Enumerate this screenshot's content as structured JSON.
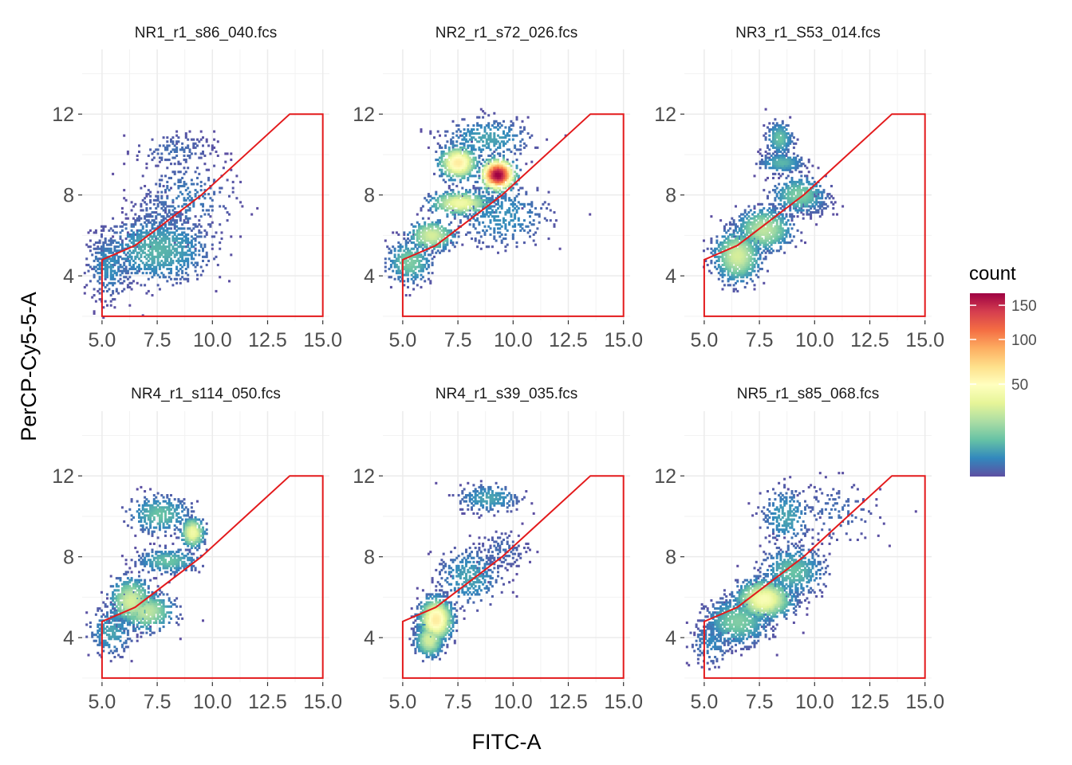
{
  "chart_data": {
    "type": "heatmap",
    "layout": "facet grid 2 rows x 3 columns",
    "xlabel": "FITC-A",
    "ylabel": "PerCP-Cy5-5-A",
    "xlim": [
      4.1,
      15.3
    ],
    "ylim": [
      1.8,
      15.2
    ],
    "x_ticks": [
      5.0,
      7.5,
      10.0,
      12.5,
      15.0
    ],
    "x_tick_labels": [
      "5.0",
      "7.5",
      "10.0",
      "12.5",
      "15.0"
    ],
    "y_ticks": [
      4,
      8,
      12
    ],
    "y_tick_labels": [
      "4",
      "8",
      "12"
    ],
    "grid": true,
    "gate": {
      "color": "#e31a1c",
      "polygon": [
        [
          5.0,
          2.0
        ],
        [
          5.0,
          4.8
        ],
        [
          6.5,
          5.5
        ],
        [
          9.5,
          8.0
        ],
        [
          13.5,
          12.0
        ],
        [
          15.0,
          12.0
        ],
        [
          15.0,
          2.0
        ]
      ]
    },
    "legend": {
      "title": "count",
      "position": "right",
      "scale": "sqrt",
      "range": [
        1,
        170
      ],
      "breaks": [
        50,
        100,
        150
      ],
      "break_labels": [
        "50",
        "100",
        "150"
      ],
      "palette": [
        "#5e4fa2",
        "#3288bd",
        "#66c2a5",
        "#abdda4",
        "#e6f598",
        "#ffffbf",
        "#fee08b",
        "#fdae61",
        "#f46d43",
        "#d53e4f",
        "#9e0142"
      ]
    },
    "panels": [
      {
        "title": "NR1_r1_s86_040.fcs",
        "clusters": [
          {
            "x": 7.5,
            "y": 5.3,
            "sx": 1.2,
            "sy": 0.8,
            "n": 900,
            "peak": 10
          },
          {
            "x": 5.3,
            "y": 4.5,
            "sx": 0.5,
            "sy": 0.8,
            "n": 300,
            "peak": 6
          },
          {
            "x": 8.8,
            "y": 7.8,
            "sx": 1.1,
            "sy": 1.0,
            "n": 250,
            "peak": 4
          },
          {
            "x": 8.3,
            "y": 10.2,
            "sx": 0.9,
            "sy": 0.45,
            "n": 140,
            "peak": 3
          },
          {
            "x": 7.5,
            "y": 7.0,
            "sx": 0.6,
            "sy": 0.7,
            "n": 120,
            "peak": 3
          }
        ]
      },
      {
        "title": "NR2_r1_s72_026.fcs",
        "clusters": [
          {
            "x": 7.5,
            "y": 9.6,
            "sx": 0.4,
            "sy": 0.38,
            "n": 700,
            "peak": 60
          },
          {
            "x": 9.3,
            "y": 9.0,
            "sx": 0.35,
            "sy": 0.35,
            "n": 800,
            "peak": 170
          },
          {
            "x": 7.6,
            "y": 7.6,
            "sx": 0.65,
            "sy": 0.28,
            "n": 500,
            "peak": 40
          },
          {
            "x": 6.3,
            "y": 6.0,
            "sx": 0.5,
            "sy": 0.35,
            "n": 400,
            "peak": 30
          },
          {
            "x": 5.3,
            "y": 4.7,
            "sx": 0.5,
            "sy": 0.5,
            "n": 400,
            "peak": 15
          },
          {
            "x": 8.8,
            "y": 10.8,
            "sx": 1.0,
            "sy": 0.5,
            "n": 300,
            "peak": 8
          },
          {
            "x": 9.5,
            "y": 7.0,
            "sx": 1.1,
            "sy": 0.8,
            "n": 350,
            "peak": 6
          }
        ]
      },
      {
        "title": "NR3_r1_S53_014.fcs",
        "clusters": [
          {
            "x": 6.5,
            "y": 5.0,
            "sx": 0.5,
            "sy": 0.6,
            "n": 900,
            "peak": 30
          },
          {
            "x": 7.7,
            "y": 6.3,
            "sx": 0.6,
            "sy": 0.5,
            "n": 700,
            "peak": 25
          },
          {
            "x": 9.3,
            "y": 8.0,
            "sx": 0.6,
            "sy": 0.45,
            "n": 400,
            "peak": 15
          },
          {
            "x": 8.4,
            "y": 10.8,
            "sx": 0.3,
            "sy": 0.4,
            "n": 220,
            "peak": 12
          },
          {
            "x": 8.5,
            "y": 9.6,
            "sx": 0.5,
            "sy": 0.25,
            "n": 250,
            "peak": 10
          },
          {
            "x": 10.0,
            "y": 7.5,
            "sx": 0.5,
            "sy": 0.3,
            "n": 100,
            "peak": 3
          }
        ]
      },
      {
        "title": "NR4_r1_s114_050.fcs",
        "clusters": [
          {
            "x": 6.3,
            "y": 5.8,
            "sx": 0.45,
            "sy": 0.55,
            "n": 600,
            "peak": 30
          },
          {
            "x": 7.0,
            "y": 5.3,
            "sx": 0.6,
            "sy": 0.45,
            "n": 500,
            "peak": 25
          },
          {
            "x": 9.1,
            "y": 9.2,
            "sx": 0.25,
            "sy": 0.35,
            "n": 350,
            "peak": 40
          },
          {
            "x": 7.6,
            "y": 10.1,
            "sx": 0.7,
            "sy": 0.45,
            "n": 350,
            "peak": 12
          },
          {
            "x": 8.0,
            "y": 7.8,
            "sx": 0.7,
            "sy": 0.3,
            "n": 300,
            "peak": 12
          },
          {
            "x": 5.4,
            "y": 4.3,
            "sx": 0.5,
            "sy": 0.6,
            "n": 250,
            "peak": 8
          }
        ]
      },
      {
        "title": "NR4_r1_s39_035.fcs",
        "clusters": [
          {
            "x": 6.5,
            "y": 4.9,
            "sx": 0.35,
            "sy": 0.5,
            "n": 1200,
            "peak": 60
          },
          {
            "x": 6.2,
            "y": 3.9,
            "sx": 0.3,
            "sy": 0.4,
            "n": 500,
            "peak": 30
          },
          {
            "x": 8.0,
            "y": 7.0,
            "sx": 0.7,
            "sy": 0.7,
            "n": 350,
            "peak": 8
          },
          {
            "x": 8.9,
            "y": 10.9,
            "sx": 0.7,
            "sy": 0.35,
            "n": 250,
            "peak": 8
          },
          {
            "x": 9.5,
            "y": 8.3,
            "sx": 0.6,
            "sy": 0.5,
            "n": 120,
            "peak": 3
          }
        ]
      },
      {
        "title": "NR5_r1_s85_068.fcs",
        "clusters": [
          {
            "x": 7.7,
            "y": 5.9,
            "sx": 0.6,
            "sy": 0.45,
            "n": 1200,
            "peak": 45
          },
          {
            "x": 6.5,
            "y": 4.8,
            "sx": 0.7,
            "sy": 0.55,
            "n": 700,
            "peak": 15
          },
          {
            "x": 9.0,
            "y": 7.3,
            "sx": 0.7,
            "sy": 0.6,
            "n": 500,
            "peak": 12
          },
          {
            "x": 8.7,
            "y": 10.0,
            "sx": 0.55,
            "sy": 0.7,
            "n": 250,
            "peak": 8
          },
          {
            "x": 5.3,
            "y": 3.8,
            "sx": 0.5,
            "sy": 0.6,
            "n": 200,
            "peak": 5
          },
          {
            "x": 11.0,
            "y": 10.2,
            "sx": 1.0,
            "sy": 0.8,
            "n": 120,
            "peak": 3
          }
        ]
      }
    ]
  }
}
